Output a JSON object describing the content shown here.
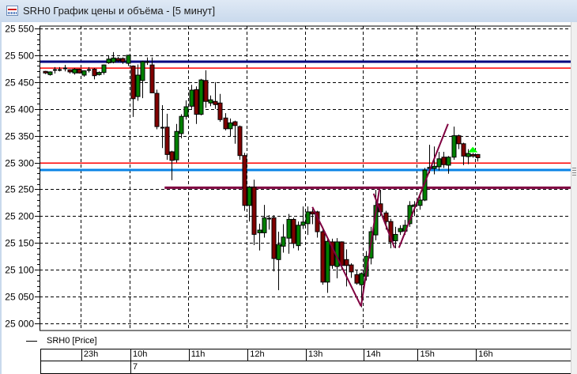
{
  "window": {
    "title": "SRH0 График цены и объёма - [5 минут]",
    "icon": "chart-window-icon"
  },
  "legend": {
    "label": "SRH0 [Price]"
  },
  "chart_data": {
    "type": "candlestick",
    "instrument": "SRH0",
    "interval": "5 минут",
    "ylim": [
      25000,
      25550
    ],
    "yticks": [
      {
        "value": 25550,
        "label": "25 550"
      },
      {
        "value": 25500,
        "label": "25 500"
      },
      {
        "value": 25450,
        "label": "25 450"
      },
      {
        "value": 25400,
        "label": "25 400"
      },
      {
        "value": 25350,
        "label": "25 350"
      },
      {
        "value": 25300,
        "label": "25 300"
      },
      {
        "value": 25250,
        "label": "25 250"
      },
      {
        "value": 25200,
        "label": "25 200"
      },
      {
        "value": 25150,
        "label": "25 150"
      },
      {
        "value": 25100,
        "label": "25 100"
      },
      {
        "value": 25050,
        "label": "25 050"
      },
      {
        "value": 25000,
        "label": "25 000"
      }
    ],
    "grid": true,
    "time_axis": {
      "hours": [
        {
          "label": "23h",
          "bar": 7.8
        },
        {
          "label": "10h",
          "bar": 17.9
        },
        {
          "label": "11h",
          "bar": 29.9
        },
        {
          "label": "12h",
          "bar": 42
        },
        {
          "label": "13h",
          "bar": 54
        },
        {
          "label": "14h",
          "bar": 65.9
        },
        {
          "label": "15h",
          "bar": 77
        },
        {
          "label": "16h",
          "bar": 89
        }
      ],
      "days": [
        {
          "label": "7",
          "bar": 17.9
        }
      ]
    },
    "colors": {
      "up": "#008000",
      "down": "#800000",
      "wick": "#000000"
    },
    "ohlc_fields": [
      "open",
      "high",
      "low",
      "close"
    ],
    "candles": [
      [
        25470,
        25471,
        25465,
        25467
      ],
      [
        25464,
        25470,
        25462,
        25469
      ],
      [
        25473,
        25478,
        25466,
        25473
      ],
      [
        25474,
        25478,
        25470,
        25474
      ],
      [
        25476,
        25482,
        25470,
        25476
      ],
      [
        25473,
        25474,
        25466,
        25469
      ],
      [
        25467,
        25476,
        25464,
        25474
      ],
      [
        25474,
        25475,
        25466,
        25467
      ],
      [
        25463,
        25472,
        25460,
        25471
      ],
      [
        25473,
        25478,
        25468,
        25473
      ],
      [
        25474,
        25476,
        25455,
        25462
      ],
      [
        25464,
        25470,
        25462,
        25468
      ],
      [
        25468,
        25483,
        25464,
        25482
      ],
      [
        25486,
        25500,
        25484,
        25493
      ],
      [
        25487,
        25506,
        25485,
        25495
      ],
      [
        25494,
        25497,
        25487,
        25490
      ],
      [
        25494,
        25496,
        25484,
        25488
      ],
      [
        25485,
        25501,
        25480,
        25500
      ],
      [
        25480,
        25481,
        25385,
        25419
      ],
      [
        25423,
        25483,
        25415,
        25463
      ],
      [
        25453,
        25490,
        25420,
        25488
      ],
      [
        25488,
        25496,
        25482,
        25488
      ],
      [
        25482,
        25496,
        25430,
        25430
      ],
      [
        25429,
        25436,
        25362,
        25367
      ],
      [
        25366,
        25407,
        25327,
        25366
      ],
      [
        25366,
        25391,
        25305,
        25315
      ],
      [
        25320,
        25322,
        25267,
        25304
      ],
      [
        25305,
        25372,
        25300,
        25358
      ],
      [
        25354,
        25390,
        25345,
        25386
      ],
      [
        25386,
        25416,
        25380,
        25404
      ],
      [
        25405,
        25445,
        25400,
        25435
      ],
      [
        25436,
        25442,
        25372,
        25390
      ],
      [
        25390,
        25456,
        25388,
        25454
      ],
      [
        25453,
        25472,
        25402,
        25414
      ],
      [
        25411,
        25425,
        25405,
        25417
      ],
      [
        25414,
        25450,
        25400,
        25408
      ],
      [
        25411,
        25428,
        25376,
        25380
      ],
      [
        25383,
        25392,
        25360,
        25363
      ],
      [
        25363,
        25382,
        25348,
        25374
      ],
      [
        25376,
        25378,
        25335,
        25369
      ],
      [
        25367,
        25369,
        25305,
        25313
      ],
      [
        25313,
        25318,
        25210,
        25220
      ],
      [
        25220,
        25256,
        25190,
        25254
      ],
      [
        25254,
        25268,
        25146,
        25166
      ],
      [
        25169,
        25186,
        25136,
        25174
      ],
      [
        25169,
        25221,
        25160,
        25197
      ],
      [
        25196,
        25202,
        25175,
        25196
      ],
      [
        25197,
        25202,
        25097,
        25121
      ],
      [
        25119,
        25171,
        25062,
        25147
      ],
      [
        25144,
        25185,
        25132,
        25161
      ],
      [
        25159,
        25204,
        25130,
        25194
      ],
      [
        25194,
        25197,
        25140,
        25149
      ],
      [
        25145,
        25190,
        25136,
        25183
      ],
      [
        25183,
        25218,
        25176,
        25189
      ],
      [
        25186,
        25218,
        25165,
        25208
      ],
      [
        25208,
        25213,
        25185,
        25204
      ],
      [
        25208,
        25210,
        25160,
        25171
      ],
      [
        25171,
        25180,
        25072,
        25077
      ],
      [
        25077,
        25160,
        25057,
        25153
      ],
      [
        25152,
        25158,
        25102,
        25108
      ],
      [
        25106,
        25159,
        25084,
        25152
      ],
      [
        25152,
        25153,
        25100,
        25108
      ],
      [
        25119,
        25138,
        25069,
        25108
      ],
      [
        25109,
        25112,
        25085,
        25096
      ],
      [
        25091,
        25100,
        25072,
        25075
      ],
      [
        25072,
        25095,
        25030,
        25093
      ],
      [
        25088,
        25135,
        25080,
        25125
      ],
      [
        25122,
        25180,
        25110,
        25171
      ],
      [
        25165,
        25249,
        25155,
        25220
      ],
      [
        25223,
        25249,
        25200,
        25208
      ],
      [
        25206,
        25210,
        25175,
        25190
      ],
      [
        25190,
        25195,
        25140,
        25152
      ],
      [
        25154,
        25180,
        25140,
        25166
      ],
      [
        25171,
        25183,
        25165,
        25177
      ],
      [
        25172,
        25193,
        25165,
        25183
      ],
      [
        25186,
        25228,
        25180,
        25220
      ],
      [
        25218,
        25228,
        25200,
        25221
      ],
      [
        25220,
        25240,
        25212,
        25230
      ],
      [
        25230,
        25290,
        25228,
        25286
      ],
      [
        25289,
        25333,
        25280,
        25291
      ],
      [
        25289,
        25330,
        25278,
        25293
      ],
      [
        25292,
        25320,
        25285,
        25307
      ],
      [
        25310,
        25320,
        25290,
        25296
      ],
      [
        25295,
        25312,
        25279,
        25310
      ],
      [
        25310,
        25367,
        25305,
        25350
      ],
      [
        25350,
        25352,
        25325,
        25335
      ],
      [
        25335,
        25337,
        25295,
        25312
      ],
      [
        25311,
        25325,
        25297,
        25317
      ],
      [
        25315,
        25318,
        25309,
        25312
      ],
      [
        25315,
        25316,
        25302,
        25309
      ]
    ],
    "horizontal_levels": [
      {
        "price": 25488,
        "color": "#000080",
        "from_bar": 0
      },
      {
        "price": 25476,
        "color": "#ff0000",
        "from_bar": 0
      },
      {
        "price": 25299,
        "color": "#ff0000",
        "from_bar": 0
      },
      {
        "price": 25286,
        "color": "#0a84e6",
        "from_bar": 0
      },
      {
        "price": 25253,
        "color": "#800040",
        "from_bar": 24.6
      }
    ],
    "trend_lines": [
      {
        "from": [
          55,
          25217
        ],
        "to": [
          65,
          25032
        ]
      },
      {
        "from": [
          65,
          25032
        ],
        "to": [
          68.8,
          25251
        ]
      },
      {
        "from": [
          67.6,
          25242
        ],
        "to": [
          71.9,
          25141
        ]
      },
      {
        "from": [
          72.8,
          25141
        ],
        "to": [
          82.9,
          25372
        ]
      }
    ],
    "trendline_color": "#800040",
    "markers": [
      {
        "bar": 88,
        "price": 25325,
        "shape": "up-triangle",
        "color": "#00ff00"
      }
    ]
  }
}
